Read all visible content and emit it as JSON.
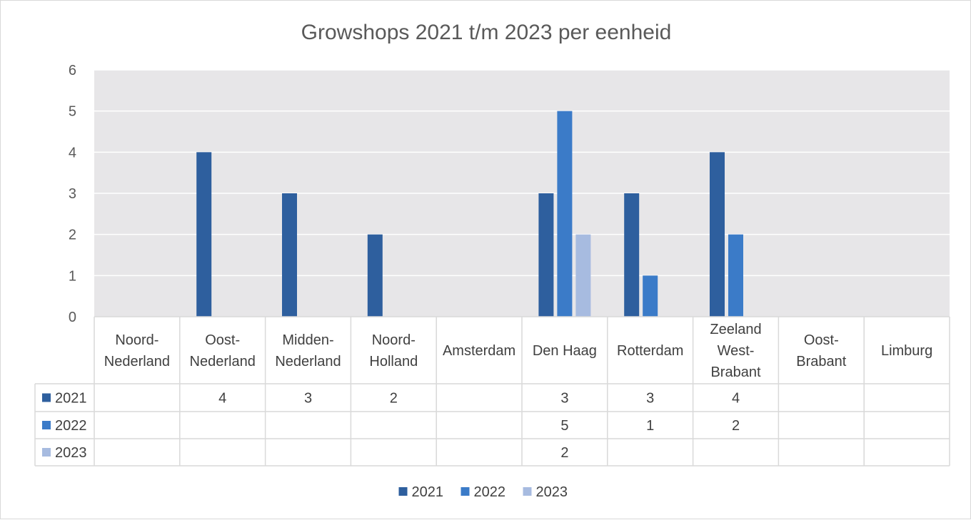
{
  "chart_data": {
    "type": "bar",
    "title": "Growshops 2021 t/m 2023 per eenheid",
    "xlabel": "",
    "ylabel": "",
    "ylim": [
      0,
      6
    ],
    "yticks": [
      "0",
      "1",
      "2",
      "3",
      "4",
      "5",
      "6"
    ],
    "grid": true,
    "legend": "bottom",
    "data_table": true,
    "categories": [
      [
        "Noord-",
        "Nederland"
      ],
      [
        "Oost-",
        "Nederland"
      ],
      [
        "Midden-",
        "Nederland"
      ],
      [
        "Noord-",
        "Holland"
      ],
      [
        "Amsterdam"
      ],
      [
        "Den Haag"
      ],
      [
        "Rotterdam"
      ],
      [
        "Zeeland",
        "West-",
        "Brabant"
      ],
      [
        "Oost-",
        "Brabant"
      ],
      [
        "Limburg"
      ]
    ],
    "series": [
      {
        "name": "2021",
        "color": "#2e5f9e",
        "values": [
          null,
          4,
          3,
          2,
          null,
          3,
          3,
          4,
          null,
          null
        ]
      },
      {
        "name": "2022",
        "color": "#3b7bc8",
        "values": [
          null,
          null,
          null,
          null,
          null,
          5,
          1,
          2,
          null,
          null
        ]
      },
      {
        "name": "2023",
        "color": "#a7bbe0",
        "values": [
          null,
          null,
          null,
          null,
          null,
          2,
          null,
          null,
          null,
          null
        ]
      }
    ],
    "colors": {
      "plot_background": "#e7e6e8",
      "grid": "#ffffff",
      "table_border": "#d9d9d9"
    }
  }
}
